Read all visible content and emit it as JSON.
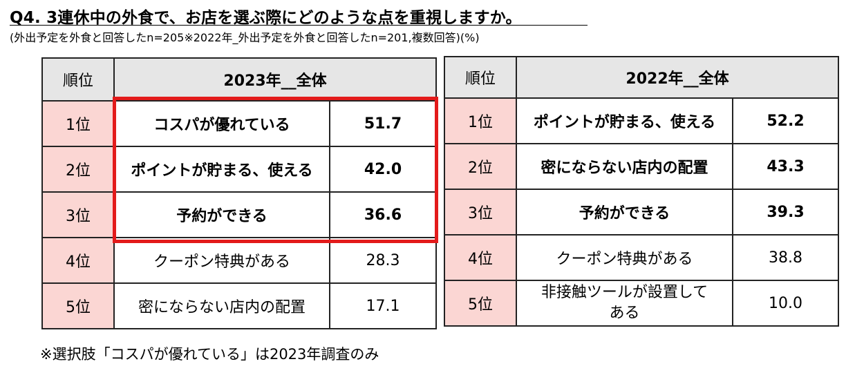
{
  "title": "Q4. 3連休中の外食で、お店を選ぶ際にどのような点を重視しますか。",
  "subtitle": "(外出予定を外食と回答したn=205※2022年_外出予定を外食と回答したn=201,複数回答)(%)",
  "footnote": "※選択肢「コスパが優れている」は2023年調査のみ",
  "colors": {
    "rank_bg": "#fbd6d3",
    "header_bg": "#e6e6e6",
    "highlight": "#e31b1b"
  },
  "chart_data": [
    {
      "type": "table",
      "title": "2023年__全体",
      "rank_header": "順位",
      "rows": [
        {
          "rank": "1位",
          "item": "コスパが優れている",
          "value": "51.7"
        },
        {
          "rank": "2位",
          "item": "ポイントが貯まる、使える",
          "value": "42.0"
        },
        {
          "rank": "3位",
          "item": "予約ができる",
          "value": "36.6"
        },
        {
          "rank": "4位",
          "item": "クーポン特典がある",
          "value": "28.3"
        },
        {
          "rank": "5位",
          "item": "密にならない店内の配置",
          "value": "17.1"
        }
      ]
    },
    {
      "type": "table",
      "title": "2022年__全体",
      "rank_header": "順位",
      "rows": [
        {
          "rank": "1位",
          "item": "ポイントが貯まる、使える",
          "value": "52.2"
        },
        {
          "rank": "2位",
          "item": "密にならない店内の配置",
          "value": "43.3"
        },
        {
          "rank": "3位",
          "item": "予約ができる",
          "value": "39.3"
        },
        {
          "rank": "4位",
          "item": "クーポン特典がある",
          "value": "38.8"
        },
        {
          "rank": "5位",
          "item": "非接触ツールが設置してある",
          "item_line1": "非接触ツールが設置して",
          "item_line2": "ある",
          "value": "10.0"
        }
      ]
    }
  ]
}
